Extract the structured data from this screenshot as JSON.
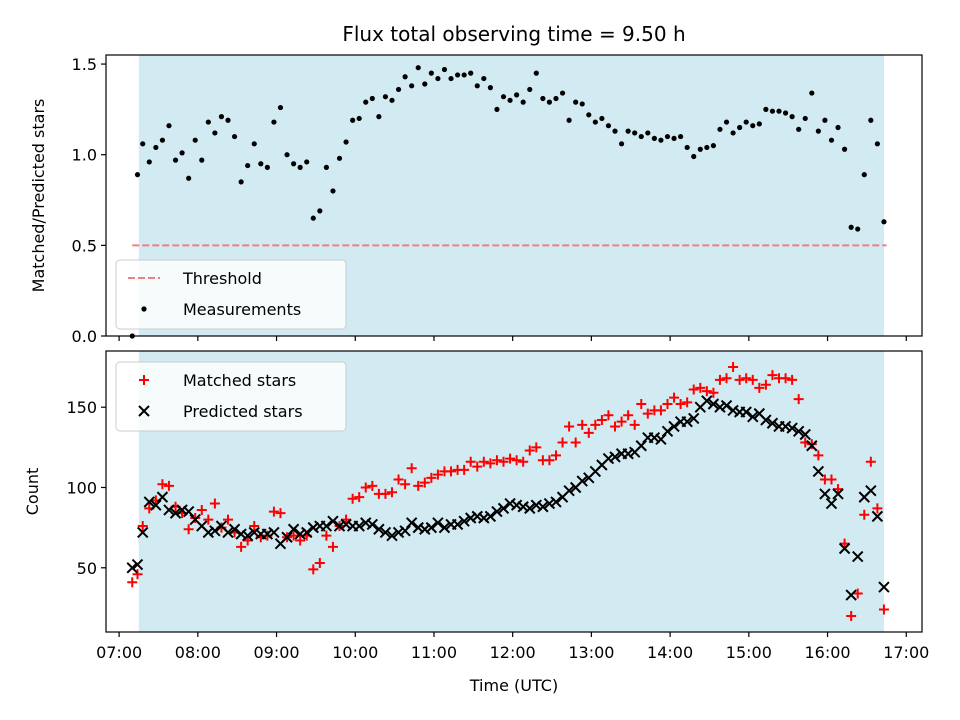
{
  "figure": {
    "title": "Flux total observing time = 9.50 h"
  },
  "chart_data": [
    {
      "type": "scatter",
      "title": "Flux total observing time = 9.50 h",
      "xlabel": "",
      "ylabel": "Matched/Predicted stars",
      "xlim": [
        "06:50",
        "17:12"
      ],
      "ylim": [
        0,
        1.55
      ],
      "yticks": [
        0.0,
        0.5,
        1.0,
        1.5
      ],
      "ytick_labels": [
        "0.0",
        "0.5",
        "1.0",
        "1.5"
      ],
      "grid": false,
      "legend_position": "lower-left",
      "shaded_interval": {
        "start": "07:15",
        "end": "16:43",
        "color": "#add8e6"
      },
      "threshold": {
        "name": "Threshold",
        "value": 0.5,
        "x_range": [
          "07:10",
          "16:45"
        ],
        "color": "#f08080",
        "style": "dashed"
      },
      "series": [
        {
          "name": "Measurements",
          "color": "#000000",
          "marker": "dot",
          "x": [
            "07:10",
            "07:14",
            "07:18",
            "07:23",
            "07:28",
            "07:33",
            "07:38",
            "07:43",
            "07:48",
            "07:53",
            "07:58",
            "08:03",
            "08:08",
            "08:13",
            "08:18",
            "08:23",
            "08:28",
            "08:33",
            "08:38",
            "08:43",
            "08:48",
            "08:53",
            "08:58",
            "09:03",
            "09:08",
            "09:13",
            "09:18",
            "09:23",
            "09:28",
            "09:33",
            "09:38",
            "09:43",
            "09:48",
            "09:53",
            "09:58",
            "10:03",
            "10:08",
            "10:13",
            "10:18",
            "10:23",
            "10:28",
            "10:33",
            "10:38",
            "10:43",
            "10:48",
            "10:53",
            "10:58",
            "11:03",
            "11:08",
            "11:13",
            "11:18",
            "11:23",
            "11:28",
            "11:33",
            "11:38",
            "11:43",
            "11:48",
            "11:53",
            "11:58",
            "12:03",
            "12:08",
            "12:13",
            "12:18",
            "12:23",
            "12:28",
            "12:33",
            "12:38",
            "12:43",
            "12:48",
            "12:53",
            "12:58",
            "13:03",
            "13:08",
            "13:13",
            "13:18",
            "13:23",
            "13:28",
            "13:33",
            "13:38",
            "13:43",
            "13:48",
            "13:53",
            "13:58",
            "14:03",
            "14:08",
            "14:13",
            "14:18",
            "14:23",
            "14:28",
            "14:33",
            "14:38",
            "14:43",
            "14:48",
            "14:53",
            "14:58",
            "15:03",
            "15:08",
            "15:13",
            "15:18",
            "15:23",
            "15:28",
            "15:33",
            "15:38",
            "15:43",
            "15:48",
            "15:53",
            "15:58",
            "16:03",
            "16:08",
            "16:13",
            "16:18",
            "16:23",
            "16:28",
            "16:33",
            "16:38",
            "16:43"
          ],
          "y": [
            0.0,
            0.89,
            1.06,
            0.96,
            1.04,
            1.08,
            1.16,
            0.97,
            1.01,
            0.87,
            1.08,
            0.97,
            1.18,
            1.12,
            1.21,
            1.19,
            1.1,
            0.85,
            0.94,
            1.06,
            0.95,
            0.93,
            1.18,
            1.26,
            1.0,
            0.95,
            0.93,
            0.96,
            0.65,
            0.69,
            0.93,
            0.8,
            0.98,
            1.07,
            1.19,
            1.2,
            1.29,
            1.31,
            1.21,
            1.32,
            1.3,
            1.36,
            1.43,
            1.38,
            1.48,
            1.39,
            1.45,
            1.42,
            1.47,
            1.42,
            1.44,
            1.44,
            1.45,
            1.38,
            1.42,
            1.37,
            1.25,
            1.32,
            1.3,
            1.33,
            1.29,
            1.36,
            1.45,
            1.31,
            1.29,
            1.31,
            1.34,
            1.19,
            1.29,
            1.28,
            1.22,
            1.18,
            1.2,
            1.16,
            1.13,
            1.06,
            1.13,
            1.12,
            1.1,
            1.12,
            1.09,
            1.08,
            1.1,
            1.09,
            1.1,
            1.04,
            0.99,
            1.03,
            1.04,
            1.05,
            1.14,
            1.18,
            1.12,
            1.15,
            1.18,
            1.16,
            1.17,
            1.25,
            1.24,
            1.24,
            1.23,
            1.21,
            1.14,
            1.2,
            1.34,
            1.13,
            1.19,
            1.08,
            1.15,
            1.03,
            0.6,
            0.59,
            0.89,
            1.19,
            1.06,
            0.63
          ]
        }
      ]
    },
    {
      "type": "scatter",
      "title": "",
      "xlabel": "Time (UTC)",
      "ylabel": "Count",
      "xlim": [
        "06:50",
        "17:12"
      ],
      "xticks": [
        "07:00",
        "08:00",
        "09:00",
        "10:00",
        "11:00",
        "12:00",
        "13:00",
        "14:00",
        "15:00",
        "16:00",
        "17:00"
      ],
      "ylim": [
        10,
        185
      ],
      "yticks": [
        50,
        100,
        150
      ],
      "ytick_labels": [
        "50",
        "100",
        "150"
      ],
      "grid": false,
      "legend_position": "upper-left",
      "shaded_interval": {
        "start": "07:15",
        "end": "16:43",
        "color": "#add8e6"
      },
      "series": [
        {
          "name": "Matched stars",
          "color": "#ff0000",
          "marker": "plus",
          "x": [
            "07:10",
            "07:14",
            "07:18",
            "07:23",
            "07:28",
            "07:33",
            "07:38",
            "07:43",
            "07:48",
            "07:53",
            "07:58",
            "08:03",
            "08:08",
            "08:13",
            "08:18",
            "08:23",
            "08:28",
            "08:33",
            "08:38",
            "08:43",
            "08:48",
            "08:53",
            "08:58",
            "09:03",
            "09:08",
            "09:13",
            "09:18",
            "09:23",
            "09:28",
            "09:33",
            "09:38",
            "09:43",
            "09:48",
            "09:53",
            "09:58",
            "10:03",
            "10:08",
            "10:13",
            "10:18",
            "10:23",
            "10:28",
            "10:33",
            "10:38",
            "10:43",
            "10:48",
            "10:53",
            "10:58",
            "11:03",
            "11:08",
            "11:13",
            "11:18",
            "11:23",
            "11:28",
            "11:33",
            "11:38",
            "11:43",
            "11:48",
            "11:53",
            "11:58",
            "12:03",
            "12:08",
            "12:13",
            "12:18",
            "12:23",
            "12:28",
            "12:33",
            "12:38",
            "12:43",
            "12:48",
            "12:53",
            "12:58",
            "13:03",
            "13:08",
            "13:13",
            "13:18",
            "13:23",
            "13:28",
            "13:33",
            "13:38",
            "13:43",
            "13:48",
            "13:53",
            "13:58",
            "14:03",
            "14:08",
            "14:13",
            "14:18",
            "14:23",
            "14:28",
            "14:33",
            "14:38",
            "14:43",
            "14:48",
            "14:53",
            "14:58",
            "15:03",
            "15:08",
            "15:13",
            "15:18",
            "15:23",
            "15:28",
            "15:33",
            "15:38",
            "15:43",
            "15:48",
            "15:53",
            "15:58",
            "16:03",
            "16:08",
            "16:13",
            "16:18",
            "16:23",
            "16:28",
            "16:33",
            "16:38",
            "16:43"
          ],
          "y": [
            41,
            46,
            76,
            87,
            92,
            102,
            101,
            88,
            84,
            74,
            81,
            86,
            80,
            90,
            75,
            80,
            72,
            63,
            67,
            76,
            69,
            70,
            85,
            84,
            69,
            70,
            67,
            70,
            49,
            53,
            70,
            63,
            76,
            80,
            93,
            94,
            100,
            101,
            96,
            96,
            97,
            105,
            102,
            112,
            101,
            103,
            106,
            108,
            110,
            110,
            111,
            111,
            116,
            113,
            116,
            115,
            117,
            116,
            118,
            117,
            116,
            123,
            125,
            117,
            117,
            120,
            128,
            138,
            128,
            139,
            134,
            139,
            142,
            145,
            138,
            141,
            145,
            139,
            152,
            146,
            148,
            148,
            152,
            156,
            152,
            153,
            161,
            162,
            160,
            159,
            167,
            168,
            175,
            167,
            168,
            167,
            162,
            164,
            170,
            168,
            168,
            167,
            155,
            128,
            127,
            120,
            105,
            105,
            99,
            65,
            20,
            34,
            83,
            116,
            87,
            24
          ]
        },
        {
          "name": "Predicted stars",
          "color": "#000000",
          "marker": "x",
          "x": [
            "07:10",
            "07:14",
            "07:18",
            "07:23",
            "07:28",
            "07:33",
            "07:38",
            "07:43",
            "07:48",
            "07:53",
            "07:58",
            "08:03",
            "08:08",
            "08:13",
            "08:18",
            "08:23",
            "08:28",
            "08:33",
            "08:38",
            "08:43",
            "08:48",
            "08:53",
            "08:58",
            "09:03",
            "09:08",
            "09:13",
            "09:18",
            "09:23",
            "09:28",
            "09:33",
            "09:38",
            "09:43",
            "09:48",
            "09:53",
            "09:58",
            "10:03",
            "10:08",
            "10:13",
            "10:18",
            "10:23",
            "10:28",
            "10:33",
            "10:38",
            "10:43",
            "10:48",
            "10:53",
            "10:58",
            "11:03",
            "11:08",
            "11:13",
            "11:18",
            "11:23",
            "11:28",
            "11:33",
            "11:38",
            "11:43",
            "11:48",
            "11:53",
            "11:58",
            "12:03",
            "12:08",
            "12:13",
            "12:18",
            "12:23",
            "12:28",
            "12:33",
            "12:38",
            "12:43",
            "12:48",
            "12:53",
            "12:58",
            "13:03",
            "13:08",
            "13:13",
            "13:18",
            "13:23",
            "13:28",
            "13:33",
            "13:38",
            "13:43",
            "13:48",
            "13:53",
            "13:58",
            "14:03",
            "14:08",
            "14:13",
            "14:18",
            "14:23",
            "14:28",
            "14:33",
            "14:38",
            "14:43",
            "14:48",
            "14:53",
            "14:58",
            "15:03",
            "15:08",
            "15:13",
            "15:18",
            "15:23",
            "15:28",
            "15:33",
            "15:38",
            "15:43",
            "15:48",
            "15:53",
            "15:58",
            "16:03",
            "16:08",
            "16:13",
            "16:18",
            "16:23",
            "16:28",
            "16:33",
            "16:38",
            "16:43"
          ],
          "y": [
            50,
            52,
            72,
            91,
            89,
            94,
            86,
            84,
            86,
            85,
            80,
            76,
            72,
            73,
            76,
            72,
            74,
            71,
            70,
            72,
            71,
            71,
            72,
            65,
            69,
            74,
            71,
            72,
            75,
            76,
            76,
            79,
            76,
            77,
            76,
            76,
            78,
            77,
            74,
            72,
            70,
            72,
            73,
            78,
            75,
            74,
            75,
            78,
            75,
            77,
            77,
            79,
            81,
            82,
            81,
            82,
            85,
            87,
            90,
            89,
            88,
            87,
            89,
            88,
            90,
            91,
            94,
            98,
            100,
            104,
            106,
            110,
            114,
            118,
            119,
            121,
            121,
            122,
            126,
            131,
            131,
            130,
            135,
            138,
            141,
            141,
            143,
            150,
            154,
            152,
            150,
            151,
            148,
            147,
            147,
            144,
            146,
            142,
            140,
            138,
            138,
            137,
            135,
            133,
            126,
            110,
            96,
            90,
            96,
            62,
            33,
            57,
            94,
            98,
            82,
            38
          ]
        }
      ]
    }
  ]
}
